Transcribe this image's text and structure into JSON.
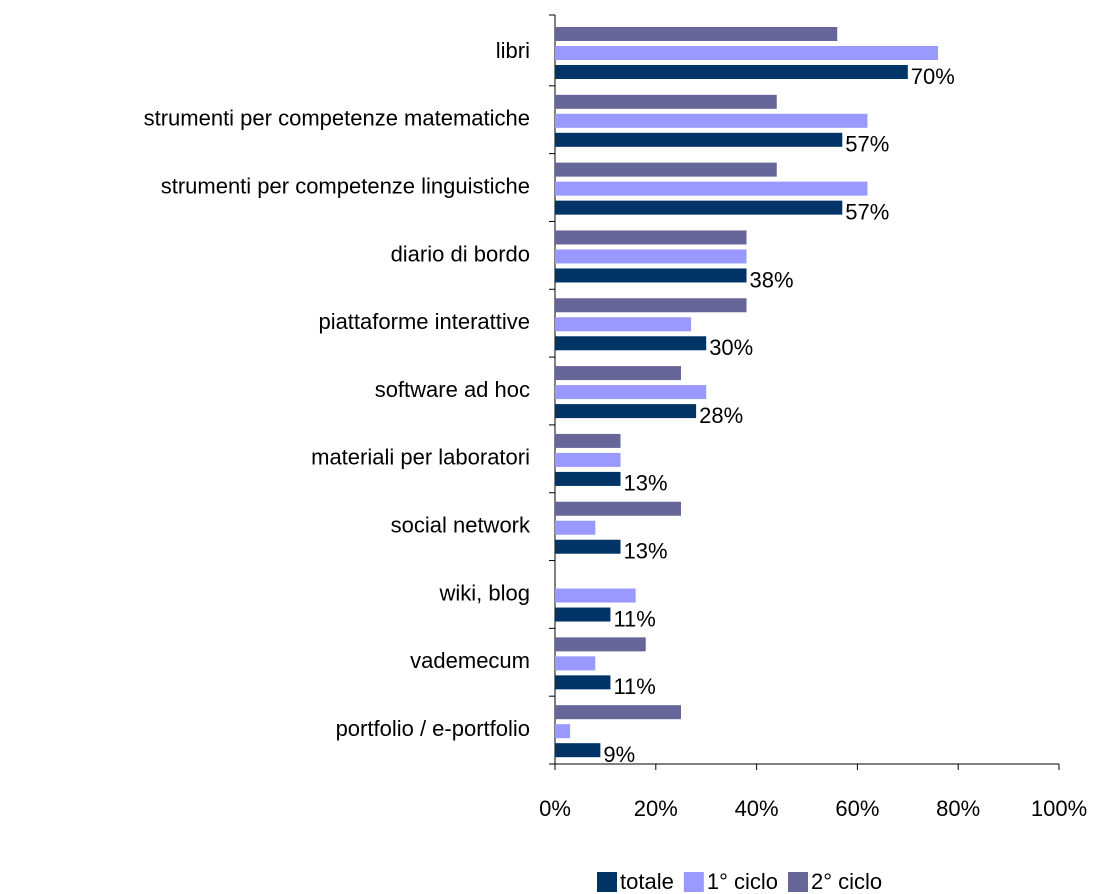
{
  "chart_data": {
    "type": "bar",
    "orientation": "horizontal",
    "categories": [
      "libri",
      "strumenti per competenze matematiche",
      "strumenti per competenze linguistiche",
      "diario di bordo",
      "piattaforme interattive",
      "software ad hoc",
      "materiali per laboratori",
      "social network",
      "wiki, blog",
      "vademecum",
      "portfolio / e-portfolio"
    ],
    "series": [
      {
        "name": "totale",
        "color": "#003366",
        "values": [
          70,
          57,
          57,
          38,
          30,
          28,
          13,
          13,
          11,
          11,
          9
        ],
        "value_labels": [
          "70%",
          "57%",
          "57%",
          "38%",
          "30%",
          "28%",
          "13%",
          "13%",
          "11%",
          "11%",
          "9%"
        ]
      },
      {
        "name": "1° ciclo",
        "color": "#9999ff",
        "values": [
          76,
          62,
          62,
          38,
          27,
          30,
          13,
          8,
          16,
          8,
          3
        ]
      },
      {
        "name": "2° ciclo",
        "color": "#666699",
        "values": [
          56,
          44,
          44,
          38,
          38,
          25,
          13,
          25,
          0,
          18,
          25
        ]
      }
    ],
    "xlim": [
      0,
      100
    ],
    "xticks": [
      {
        "value": 0,
        "label": "0%"
      },
      {
        "value": 20,
        "label": "20%"
      },
      {
        "value": 40,
        "label": "40%"
      },
      {
        "value": 60,
        "label": "60%"
      },
      {
        "value": 80,
        "label": "80%"
      },
      {
        "value": 100,
        "label": "100%"
      }
    ],
    "grid": false,
    "legend": "bottom"
  }
}
